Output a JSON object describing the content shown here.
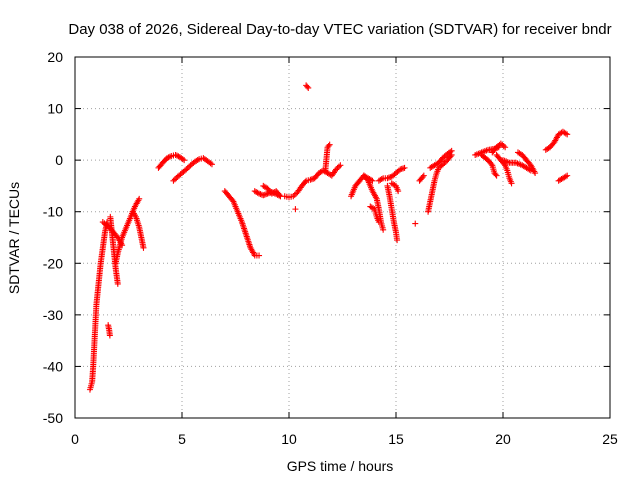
{
  "chart_data": {
    "type": "scatter",
    "title": "Day 038 of 2026, Sidereal Day-to-day VTEC variation (SDTVAR) for receiver bndr",
    "xlabel": "GPS time / hours",
    "ylabel": "SDTVAR / TECUs",
    "xlim": [
      0,
      25
    ],
    "ylim": [
      -50,
      20
    ],
    "xticks": [
      0,
      5,
      10,
      15,
      20,
      25
    ],
    "yticks": [
      -50,
      -40,
      -30,
      -20,
      -10,
      0,
      10,
      20
    ],
    "grid": true,
    "marker": "+",
    "color": "#ff0000",
    "arcs": [
      [
        [
          0.7,
          -44.5
        ],
        [
          0.8,
          -43
        ],
        [
          0.85,
          -40
        ],
        [
          0.9,
          -36
        ],
        [
          0.95,
          -32
        ],
        [
          1.0,
          -28
        ],
        [
          1.1,
          -24
        ],
        [
          1.2,
          -20
        ],
        [
          1.3,
          -17
        ],
        [
          1.4,
          -14
        ],
        [
          1.5,
          -12
        ]
      ],
      [
        [
          1.3,
          -12
        ],
        [
          1.45,
          -12.5
        ],
        [
          1.6,
          -13
        ],
        [
          1.8,
          -14
        ],
        [
          2.0,
          -15
        ],
        [
          2.2,
          -16.5
        ]
      ],
      [
        [
          1.55,
          -32
        ],
        [
          1.6,
          -33
        ],
        [
          1.63,
          -34
        ]
      ],
      [
        [
          1.65,
          -11
        ],
        [
          1.7,
          -13
        ],
        [
          1.8,
          -17
        ],
        [
          1.9,
          -21
        ],
        [
          2.0,
          -24
        ]
      ],
      [
        [
          1.9,
          -20
        ],
        [
          2.0,
          -18
        ],
        [
          2.2,
          -15
        ],
        [
          2.4,
          -13
        ],
        [
          2.6,
          -11
        ],
        [
          2.8,
          -9
        ],
        [
          3.0,
          -7.5
        ]
      ],
      [
        [
          2.7,
          -10
        ],
        [
          2.85,
          -11
        ],
        [
          3.0,
          -13
        ],
        [
          3.1,
          -15
        ],
        [
          3.2,
          -17
        ]
      ],
      [
        [
          3.9,
          -1.5
        ],
        [
          4.1,
          -0.5
        ],
        [
          4.3,
          0.4
        ],
        [
          4.5,
          0.8
        ],
        [
          4.7,
          1.0
        ],
        [
          4.9,
          0.6
        ],
        [
          5.1,
          0
        ]
      ],
      [
        [
          4.6,
          -4
        ],
        [
          4.8,
          -3.2
        ],
        [
          5.0,
          -2.5
        ],
        [
          5.2,
          -1.8
        ],
        [
          5.4,
          -1.0
        ],
        [
          5.6,
          -0.3
        ],
        [
          5.8,
          0.2
        ],
        [
          6.0,
          0.4
        ],
        [
          6.2,
          -0.2
        ],
        [
          6.4,
          -0.8
        ]
      ],
      [
        [
          7.0,
          -6
        ],
        [
          7.2,
          -7
        ],
        [
          7.4,
          -8
        ],
        [
          7.6,
          -10
        ],
        [
          7.8,
          -12
        ],
        [
          8.0,
          -14.5
        ],
        [
          8.2,
          -17
        ],
        [
          8.4,
          -18.5
        ],
        [
          8.6,
          -18.5
        ]
      ],
      [
        [
          8.4,
          -6
        ],
        [
          8.6,
          -6.5
        ],
        [
          8.8,
          -6.8
        ],
        [
          9.0,
          -6.5
        ],
        [
          9.2,
          -6.2
        ],
        [
          9.4,
          -6.6
        ],
        [
          9.6,
          -7
        ]
      ],
      [
        [
          8.8,
          -5
        ],
        [
          9.0,
          -5.5
        ],
        [
          9.2,
          -6.5
        ],
        [
          9.4,
          -6
        ],
        [
          9.6,
          -7
        ]
      ],
      [
        [
          9.8,
          -7
        ],
        [
          10.0,
          -7.2
        ],
        [
          10.2,
          -7
        ],
        [
          10.4,
          -6.2
        ],
        [
          10.6,
          -5
        ],
        [
          10.8,
          -4
        ],
        [
          11.0,
          -3.8
        ],
        [
          11.2,
          -3.5
        ],
        [
          11.4,
          -2.5
        ],
        [
          11.6,
          -2
        ],
        [
          11.8,
          -2.5
        ],
        [
          12.0,
          -3
        ],
        [
          12.2,
          -1.8
        ],
        [
          12.4,
          -1
        ]
      ],
      [
        [
          10.3,
          -9.5
        ]
      ],
      [
        [
          10.8,
          14.5
        ],
        [
          10.9,
          14
        ]
      ],
      [
        [
          11.7,
          -2
        ],
        [
          11.8,
          2.5
        ],
        [
          11.9,
          3
        ]
      ],
      [
        [
          12.9,
          -7
        ],
        [
          13.0,
          -6
        ],
        [
          13.1,
          -5
        ],
        [
          13.3,
          -4
        ],
        [
          13.5,
          -3
        ],
        [
          13.7,
          -3.5
        ],
        [
          13.9,
          -4
        ]
      ],
      [
        [
          13.5,
          -3
        ],
        [
          13.7,
          -4
        ],
        [
          13.9,
          -6
        ],
        [
          14.1,
          -7.5
        ],
        [
          14.2,
          -9.5
        ],
        [
          14.3,
          -12
        ],
        [
          14.4,
          -13.5
        ]
      ],
      [
        [
          13.8,
          -9
        ],
        [
          14.0,
          -9.5
        ],
        [
          14.1,
          -11
        ],
        [
          14.2,
          -12
        ]
      ],
      [
        [
          14.2,
          -4
        ],
        [
          14.4,
          -3.5
        ],
        [
          14.6,
          -3.5
        ],
        [
          14.8,
          -3.2
        ],
        [
          15.0,
          -2.5
        ],
        [
          15.2,
          -1.8
        ],
        [
          15.4,
          -1.5
        ]
      ],
      [
        [
          14.6,
          -5
        ],
        [
          14.7,
          -7
        ],
        [
          14.8,
          -9.5
        ],
        [
          14.9,
          -12
        ],
        [
          15.0,
          -14
        ],
        [
          15.05,
          -15.5
        ]
      ],
      [
        [
          14.8,
          -4.5
        ],
        [
          15.0,
          -5
        ],
        [
          15.1,
          -6
        ]
      ],
      [
        [
          15.9,
          -12.3
        ]
      ],
      [
        [
          16.1,
          -4
        ],
        [
          16.2,
          -3.5
        ],
        [
          16.3,
          -3
        ]
      ],
      [
        [
          16.5,
          -10
        ],
        [
          16.6,
          -8
        ],
        [
          16.7,
          -6
        ],
        [
          16.8,
          -4
        ],
        [
          16.9,
          -2.5
        ],
        [
          17.0,
          -1.5
        ],
        [
          17.2,
          -0.8
        ],
        [
          17.4,
          0
        ],
        [
          17.6,
          1
        ]
      ],
      [
        [
          16.6,
          -1.5
        ],
        [
          16.8,
          -1
        ],
        [
          17.0,
          -0.5
        ],
        [
          17.2,
          0.5
        ],
        [
          17.4,
          1.2
        ],
        [
          17.6,
          1.8
        ]
      ],
      [
        [
          18.7,
          1
        ],
        [
          19.0,
          1.5
        ],
        [
          19.3,
          2
        ],
        [
          19.6,
          2.2
        ],
        [
          19.8,
          2.5
        ]
      ],
      [
        [
          19.0,
          1
        ],
        [
          19.3,
          0
        ],
        [
          19.5,
          -1
        ],
        [
          19.6,
          -2.5
        ],
        [
          19.7,
          -3
        ]
      ],
      [
        [
          19.5,
          1.5
        ],
        [
          19.7,
          2.5
        ],
        [
          19.9,
          3.2
        ],
        [
          20.1,
          2.5
        ]
      ],
      [
        [
          19.7,
          1
        ],
        [
          19.9,
          0
        ],
        [
          20.1,
          -1
        ],
        [
          20.2,
          -2
        ],
        [
          20.3,
          -3.5
        ],
        [
          20.4,
          -4.5
        ]
      ],
      [
        [
          20.0,
          0
        ],
        [
          20.3,
          -0.5
        ],
        [
          20.6,
          -0.5
        ],
        [
          20.9,
          -1
        ],
        [
          21.1,
          -1.5
        ],
        [
          21.3,
          -2
        ]
      ],
      [
        [
          20.7,
          1.5
        ],
        [
          20.9,
          1
        ],
        [
          21.1,
          0
        ],
        [
          21.3,
          -1
        ],
        [
          21.5,
          -2.5
        ]
      ],
      [
        [
          22.0,
          2
        ],
        [
          22.2,
          2.5
        ],
        [
          22.4,
          3.5
        ],
        [
          22.6,
          5
        ],
        [
          22.8,
          5.5
        ],
        [
          23.0,
          5
        ]
      ],
      [
        [
          22.6,
          -4
        ],
        [
          22.8,
          -3.5
        ],
        [
          23.0,
          -3
        ]
      ]
    ]
  }
}
